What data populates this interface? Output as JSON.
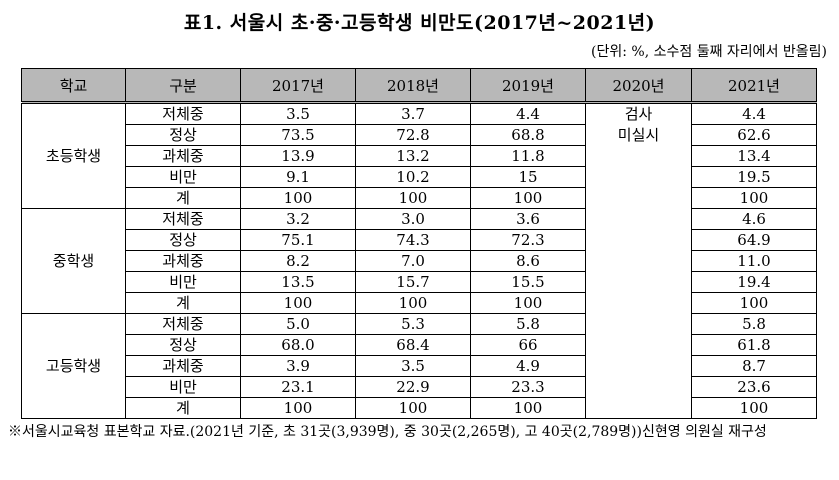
{
  "title": "표1. 서울시 초·중·고등학생 비만도(2017년~2021년)",
  "unit": "(단위: %, 소수점 둘째 자리에서 반올림)",
  "columns": [
    "학교",
    "구분",
    "2017년",
    "2018년",
    "2019년",
    "2020년",
    "2021년"
  ],
  "note_2020": [
    "검사",
    "미실시"
  ],
  "groups": [
    {
      "school": "초등학생",
      "rows": [
        {
          "category": "저체중",
          "v2017": "3.5",
          "v2018": "3.7",
          "v2019": "4.4",
          "v2021": "4.4"
        },
        {
          "category": "정상",
          "v2017": "73.5",
          "v2018": "72.8",
          "v2019": "68.8",
          "v2021": "62.6"
        },
        {
          "category": "과체중",
          "v2017": "13.9",
          "v2018": "13.2",
          "v2019": "11.8",
          "v2021": "13.4"
        },
        {
          "category": "비만",
          "v2017": "9.1",
          "v2018": "10.2",
          "v2019": "15",
          "v2021": "19.5"
        },
        {
          "category": "계",
          "v2017": "100",
          "v2018": "100",
          "v2019": "100",
          "v2021": "100"
        }
      ]
    },
    {
      "school": "중학생",
      "rows": [
        {
          "category": "저체중",
          "v2017": "3.2",
          "v2018": "3.0",
          "v2019": "3.6",
          "v2021": "4.6"
        },
        {
          "category": "정상",
          "v2017": "75.1",
          "v2018": "74.3",
          "v2019": "72.3",
          "v2021": "64.9"
        },
        {
          "category": "과체중",
          "v2017": "8.2",
          "v2018": "7.0",
          "v2019": "8.6",
          "v2021": "11.0"
        },
        {
          "category": "비만",
          "v2017": "13.5",
          "v2018": "15.7",
          "v2019": "15.5",
          "v2021": "19.4"
        },
        {
          "category": "계",
          "v2017": "100",
          "v2018": "100",
          "v2019": "100",
          "v2021": "100"
        }
      ]
    },
    {
      "school": "고등학생",
      "rows": [
        {
          "category": "저체중",
          "v2017": "5.0",
          "v2018": "5.3",
          "v2019": "5.8",
          "v2021": "5.8"
        },
        {
          "category": "정상",
          "v2017": "68.0",
          "v2018": "68.4",
          "v2019": "66",
          "v2021": "61.8"
        },
        {
          "category": "과체중",
          "v2017": "3.9",
          "v2018": "3.5",
          "v2019": "4.9",
          "v2021": "8.7"
        },
        {
          "category": "비만",
          "v2017": "23.1",
          "v2018": "22.9",
          "v2019": "23.3",
          "v2021": "23.6"
        },
        {
          "category": "계",
          "v2017": "100",
          "v2018": "100",
          "v2019": "100",
          "v2021": "100"
        }
      ]
    }
  ],
  "footnote": "※서울시교육청 표본학교 자료.(2021년 기준, 초 31곳(3,939명), 중 30곳(2,265명), 고 40곳(2,789명))신현영 의원실 재구성"
}
